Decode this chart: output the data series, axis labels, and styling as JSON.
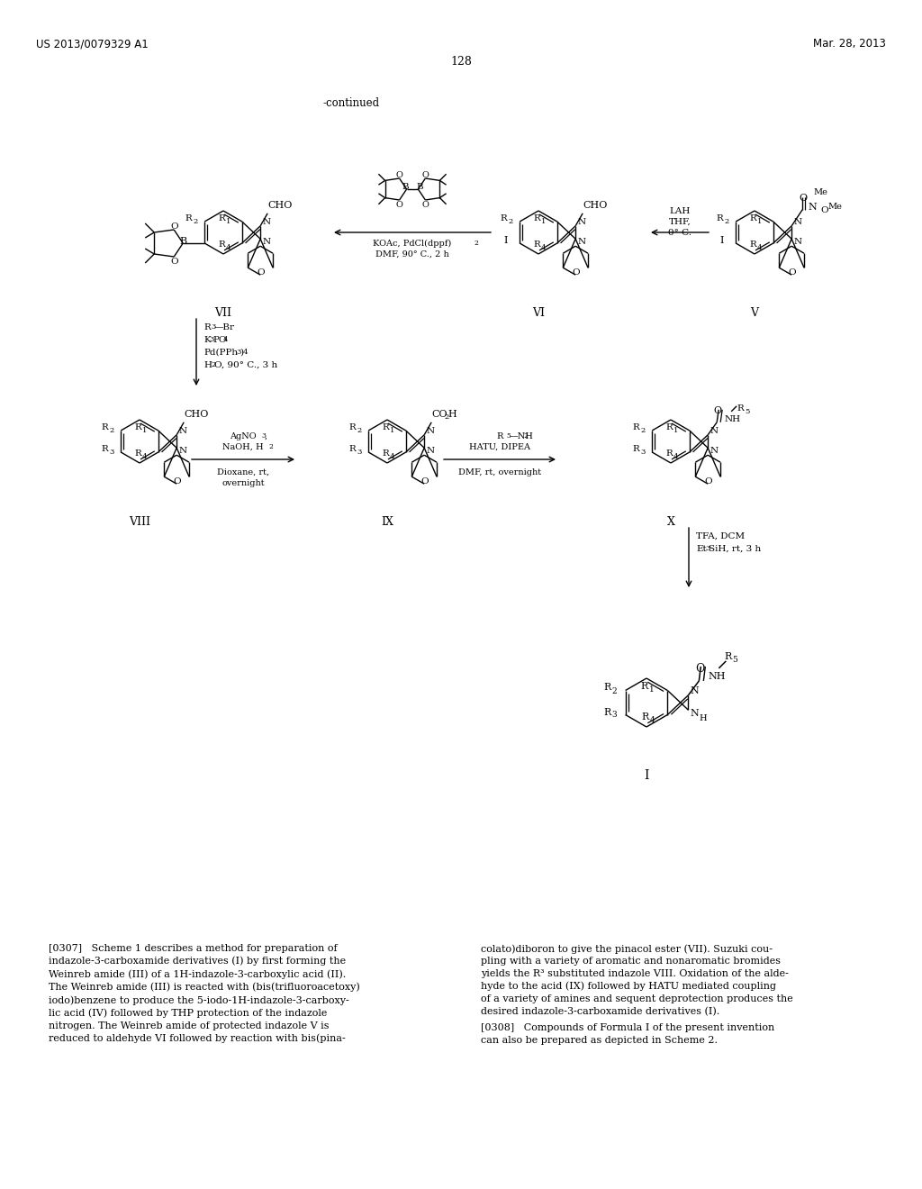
{
  "page_header_left": "US 2013/0079329 A1",
  "page_header_right": "Mar. 28, 2013",
  "page_number": "128",
  "continued_text": "-continued",
  "background_color": "#ffffff",
  "text_color": "#000000"
}
